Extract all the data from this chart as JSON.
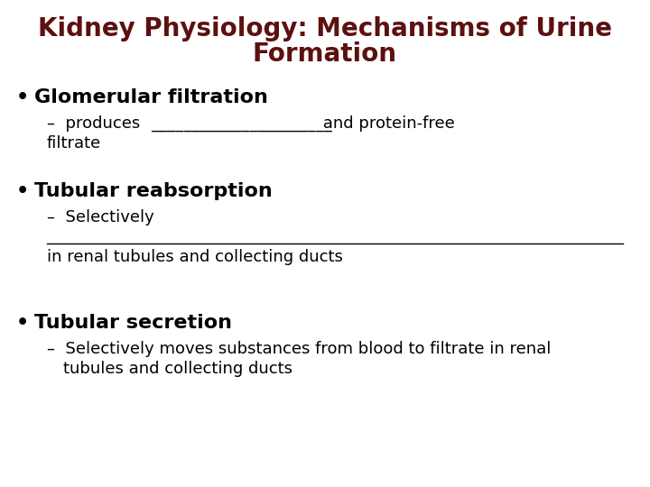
{
  "title_line1": "Kidney Physiology: Mechanisms of Urine",
  "title_line2": "Formation",
  "title_color": "#5C1010",
  "background_color": "#FFFFFF",
  "text_color": "#000000",
  "bullet1_header": "Glomerular filtration",
  "bullet2_header": "Tubular reabsorption",
  "bullet3_header": "Tubular secretion",
  "sub1_text": "–  produces ______________________ and protein-free",
  "sub1_line2": "    filtrate",
  "sub2_text": "–  Selectively",
  "sub2_line2": "in renal tubules and collecting ducts",
  "sub3_text": "–  Selectively moves substances from blood to filtrate in renal",
  "sub3_line2": "    tubules and collecting ducts",
  "title_fontsize": 20,
  "header_fontsize": 16,
  "sub_fontsize": 13,
  "title_fontweight": "bold",
  "header_fontweight": "bold",
  "font_family": "DejaVu Sans"
}
